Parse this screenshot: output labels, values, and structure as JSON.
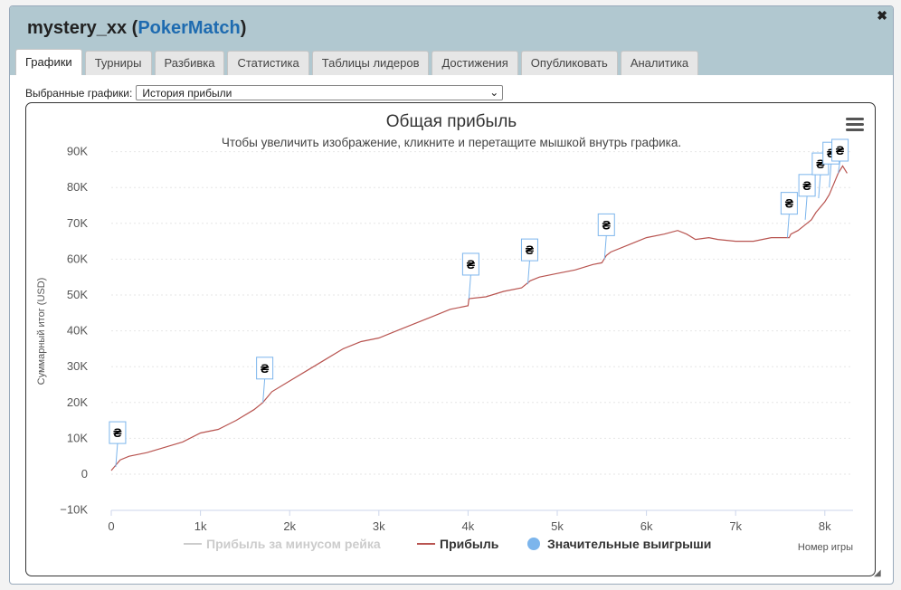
{
  "window": {
    "player": "mystery_xx",
    "site": "PokerMatch",
    "close": "✖"
  },
  "tabs": [
    "Графики",
    "Турниры",
    "Разбивка",
    "Статистика",
    "Таблицы лидеров",
    "Достижения",
    "Опубликовать",
    "Аналитика"
  ],
  "selector": {
    "label": "Выбранные графики:",
    "value": "История прибыли"
  },
  "chart": {
    "title": "Общая прибыль",
    "subtitle": "Чтобы увеличить изображение, кликните и перетащите мышкой внутрь графика.",
    "ylabel": "Суммарный итог (USD)",
    "xlabel": "Номер игры",
    "yticks": [
      "90K",
      "80K",
      "70K",
      "60K",
      "50K",
      "40K",
      "30K",
      "20K",
      "10K",
      "0",
      "−10K"
    ],
    "xticks": [
      "0",
      "1k",
      "2k",
      "3k",
      "4k",
      "5k",
      "6k",
      "7k",
      "8k"
    ],
    "legend": [
      "Прибыль за минусом рейка",
      "Прибыль",
      "Значительные выигрыши"
    ],
    "flag_symbol": "₴",
    "colors": {
      "profit": "#b85450",
      "rake": "#cccccc",
      "wins": "#7cb5ec"
    }
  },
  "chart_data": {
    "type": "line",
    "title": "Общая прибыль",
    "xlabel": "Номер игры",
    "ylabel": "Суммарный итог (USD)",
    "xlim": [
      0,
      8300
    ],
    "ylim": [
      -10000,
      90000
    ],
    "series": [
      {
        "name": "Прибыль",
        "x": [
          0,
          50,
          100,
          200,
          400,
          600,
          800,
          1000,
          1200,
          1400,
          1600,
          1700,
          1800,
          2000,
          2200,
          2400,
          2600,
          2800,
          3000,
          3200,
          3400,
          3600,
          3800,
          4000,
          4010,
          4200,
          4400,
          4600,
          4700,
          4800,
          5000,
          5200,
          5400,
          5500,
          5550,
          5600,
          5800,
          6000,
          6200,
          6350,
          6450,
          6550,
          6700,
          6800,
          7000,
          7200,
          7400,
          7600,
          7620,
          7700,
          7800,
          7850,
          7900,
          8000,
          8050,
          8100,
          8150,
          8200,
          8250
        ],
        "y": [
          1000,
          2500,
          4000,
          5000,
          6000,
          7500,
          9000,
          11500,
          12500,
          15000,
          18000,
          20000,
          23000,
          26000,
          29000,
          32000,
          35000,
          37000,
          38000,
          40000,
          42000,
          44000,
          46000,
          47000,
          49000,
          49500,
          51000,
          52000,
          54000,
          55000,
          56000,
          57000,
          58500,
          59000,
          61000,
          62000,
          64000,
          66000,
          67000,
          68000,
          67000,
          65500,
          66000,
          65500,
          65000,
          65000,
          66000,
          66000,
          67000,
          68000,
          70000,
          71000,
          73000,
          76000,
          78000,
          81000,
          84000,
          86000,
          84000
        ]
      },
      {
        "name": "Прибыль за минусом рейка",
        "x": [],
        "y": []
      },
      {
        "name": "Значительные выигрыши",
        "x": [
          50,
          1700,
          4010,
          4670,
          5530,
          7580,
          7780,
          7930,
          8050,
          8150
        ],
        "y": [
          2000,
          20000,
          49000,
          53000,
          60000,
          66000,
          71000,
          77000,
          80000,
          84000
        ]
      }
    ]
  }
}
